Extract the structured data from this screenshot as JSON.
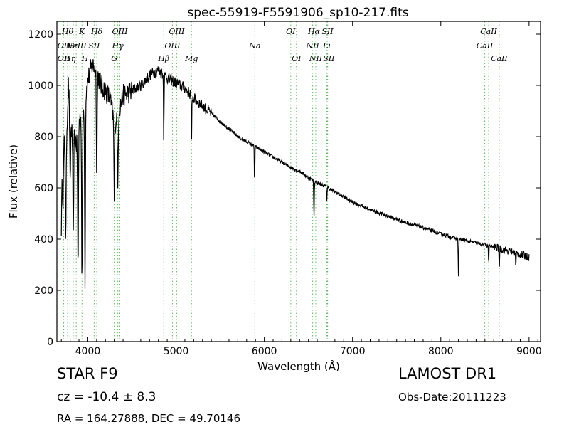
{
  "chart_data": {
    "type": "line",
    "title": "spec-55919-F5591906_sp10-217.fits",
    "xlabel": "Wavelength (Å)",
    "ylabel": "Flux (relative)",
    "xlim": [
      3650,
      9130
    ],
    "ylim": [
      0,
      1250
    ],
    "xticks": [
      4000,
      5000,
      6000,
      7000,
      8000,
      9000
    ],
    "yticks": [
      0,
      200,
      400,
      600,
      800,
      1000,
      1200
    ],
    "grid": false,
    "series": [
      {
        "color": "#000000",
        "anchors": [
          [
            3700,
            450
          ],
          [
            3720,
            820
          ],
          [
            3750,
            700
          ],
          [
            3780,
            1000
          ],
          [
            3800,
            880
          ],
          [
            3830,
            780
          ],
          [
            3850,
            800
          ],
          [
            3880,
            760
          ],
          [
            3900,
            860
          ],
          [
            3950,
            900
          ],
          [
            4000,
            1020
          ],
          [
            4050,
            1080
          ],
          [
            4100,
            1060
          ],
          [
            4150,
            1000
          ],
          [
            4200,
            980
          ],
          [
            4250,
            950
          ],
          [
            4300,
            850
          ],
          [
            4350,
            900
          ],
          [
            4400,
            960
          ],
          [
            4500,
            980
          ],
          [
            4600,
            1000
          ],
          [
            4700,
            1040
          ],
          [
            4800,
            1060
          ],
          [
            4900,
            1030
          ],
          [
            5000,
            1010
          ],
          [
            5100,
            990
          ],
          [
            5200,
            950
          ],
          [
            5300,
            920
          ],
          [
            5400,
            890
          ],
          [
            5500,
            860
          ],
          [
            5600,
            830
          ],
          [
            5700,
            800
          ],
          [
            5800,
            780
          ],
          [
            5900,
            760
          ],
          [
            6000,
            740
          ],
          [
            6100,
            720
          ],
          [
            6200,
            700
          ],
          [
            6300,
            680
          ],
          [
            6400,
            665
          ],
          [
            6500,
            640
          ],
          [
            6600,
            620
          ],
          [
            6700,
            605
          ],
          [
            6800,
            585
          ],
          [
            6900,
            565
          ],
          [
            7000,
            545
          ],
          [
            7200,
            515
          ],
          [
            7400,
            490
          ],
          [
            7600,
            465
          ],
          [
            7800,
            445
          ],
          [
            8000,
            420
          ],
          [
            8200,
            400
          ],
          [
            8400,
            385
          ],
          [
            8600,
            370
          ],
          [
            8800,
            350
          ],
          [
            9000,
            330
          ]
        ],
        "absorption_lines": [
          [
            3720,
            260
          ],
          [
            3750,
            320
          ],
          [
            3800,
            280
          ],
          [
            3835,
            400
          ],
          [
            3890,
            550
          ],
          [
            3934,
            660
          ],
          [
            3968,
            700
          ],
          [
            4102,
            400
          ],
          [
            4300,
            300
          ],
          [
            4340,
            300
          ],
          [
            4861,
            250
          ],
          [
            5175,
            200
          ],
          [
            5890,
            150
          ],
          [
            6563,
            150
          ],
          [
            6708,
            50
          ],
          [
            8200,
            150
          ],
          [
            8542,
            70
          ],
          [
            8662,
            80
          ],
          [
            8850,
            60
          ]
        ]
      }
    ],
    "annotations": [
      {
        "x": 3727,
        "row": 2,
        "text": "OII"
      },
      {
        "x": 3727,
        "row": 3,
        "text": "OII"
      },
      {
        "x": 3771,
        "row": 1,
        "text": "Hθ"
      },
      {
        "x": 3798,
        "row": 3,
        "text": "Hη"
      },
      {
        "x": 3835,
        "row": 2,
        "text": "Hε"
      },
      {
        "x": 3869,
        "row": 2,
        "text": "NeIII"
      },
      {
        "x": 3934,
        "row": 1,
        "text": "K"
      },
      {
        "x": 3968,
        "row": 3,
        "text": "H"
      },
      {
        "x": 4072,
        "row": 2,
        "text": "SII"
      },
      {
        "x": 4102,
        "row": 1,
        "text": "Hδ"
      },
      {
        "x": 4300,
        "row": 3,
        "text": "G"
      },
      {
        "x": 4340,
        "row": 2,
        "text": "Hγ"
      },
      {
        "x": 4363,
        "row": 1,
        "text": "OIII"
      },
      {
        "x": 4861,
        "row": 3,
        "text": "Hβ"
      },
      {
        "x": 4959,
        "row": 2,
        "text": "OIII"
      },
      {
        "x": 5007,
        "row": 1,
        "text": "OIII"
      },
      {
        "x": 5175,
        "row": 3,
        "text": "Mg"
      },
      {
        "x": 5893,
        "row": 2,
        "text": "Na"
      },
      {
        "x": 6300,
        "row": 1,
        "text": "OI"
      },
      {
        "x": 6364,
        "row": 3,
        "text": "OI"
      },
      {
        "x": 6548,
        "row": 2,
        "text": "NII"
      },
      {
        "x": 6563,
        "row": 1,
        "text": "Hα"
      },
      {
        "x": 6583,
        "row": 3,
        "text": "NII"
      },
      {
        "x": 6708,
        "row": 2,
        "text": "Li"
      },
      {
        "x": 6716,
        "row": 1,
        "text": "SII"
      },
      {
        "x": 6731,
        "row": 3,
        "text": "SII"
      },
      {
        "x": 8498,
        "row": 2,
        "text": "CaII"
      },
      {
        "x": 8542,
        "row": 1,
        "text": "CaII"
      },
      {
        "x": 8662,
        "row": 3,
        "text": "CaII"
      }
    ]
  },
  "info": {
    "object_class": "STAR   F9",
    "redshift": "cz = -10.4 ± 8.3",
    "coordinates": "RA = 164.27888, DEC = 49.70146",
    "survey": "LAMOST DR1",
    "obs_date": "Obs-Date:20111223"
  }
}
